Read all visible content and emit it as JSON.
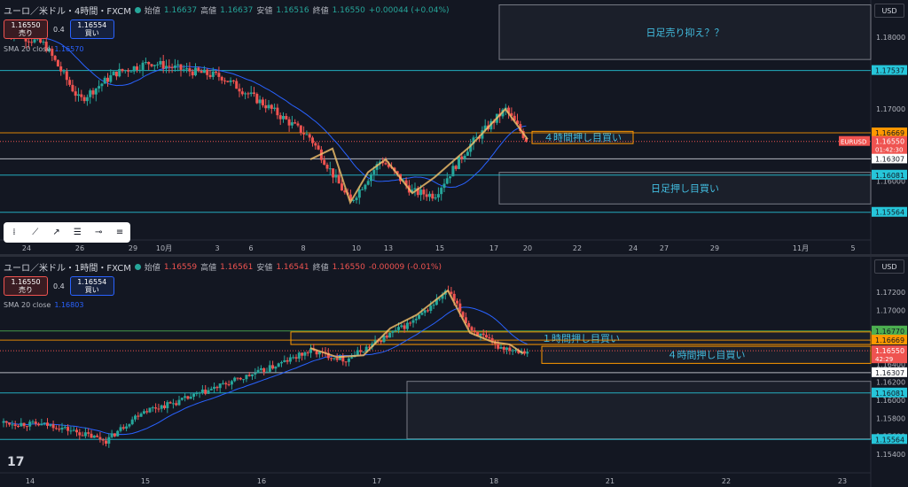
{
  "top": {
    "header": {
      "symbol": "ユーロ／米ドル・4時間・FXCM",
      "open_k": "始値",
      "open_v": "1.16637",
      "high_k": "高値",
      "high_v": "1.16637",
      "low_k": "安値",
      "low_v": "1.16516",
      "close_k": "終値",
      "close_v": "1.16550",
      "change": "+0.00044 (+0.04%)"
    },
    "sell": {
      "price": "1.16550",
      "label": "売り"
    },
    "buy": {
      "price": "1.16554",
      "label": "買い"
    },
    "spread": "0.4",
    "sma": {
      "label": "SMA 20 close",
      "value": "1.16570"
    },
    "currency": "USD",
    "axis_ticks": [
      {
        "v": 1.18,
        "t": "1.18000"
      },
      {
        "v": 1.17,
        "t": "1.17000"
      },
      {
        "v": 1.16,
        "t": "1.16000"
      }
    ],
    "price_tags": [
      {
        "v": 1.17537,
        "t": "1.17537",
        "bg": "#26c6da",
        "fg": "#131722"
      },
      {
        "v": 1.16669,
        "t": "1.16669",
        "bg": "#ff9800",
        "fg": "#131722"
      },
      {
        "v": 1.16307,
        "t": "1.16307",
        "bg": "#ffffff",
        "fg": "#131722"
      },
      {
        "v": 1.16081,
        "t": "1.16081",
        "bg": "#26c6da",
        "fg": "#131722"
      },
      {
        "v": 1.15564,
        "t": "1.15564",
        "bg": "#26c6da",
        "fg": "#131722"
      }
    ],
    "last": {
      "v": 1.1655,
      "t": "1.16550",
      "sub": "01:42:30",
      "sym": "EURUSD"
    },
    "x_labels": [
      "24",
      "26",
      "29",
      "10月",
      "3",
      "6",
      "8",
      "10",
      "13",
      "15",
      "17",
      "20",
      "22",
      "24",
      "27",
      "29",
      "11月",
      "5"
    ],
    "zones": [
      {
        "label": "日足売り抑え？？",
        "from": 1.1845,
        "to": 1.1769
      },
      {
        "label": "日足押し目買い",
        "from": 1.1612,
        "to": 1.1568
      },
      {
        "label": "４時間押し目買い",
        "from": 1.1669,
        "to": 1.1652
      }
    ]
  },
  "bottom": {
    "header": {
      "symbol": "ユーロ／米ドル・1時間・FXCM",
      "open_k": "始値",
      "open_v": "1.16559",
      "high_k": "高値",
      "high_v": "1.16561",
      "low_k": "安値",
      "low_v": "1.16541",
      "close_k": "終値",
      "close_v": "1.16550",
      "change": "-0.00009 (-0.01%)"
    },
    "sell": {
      "price": "1.16550",
      "label": "売り"
    },
    "buy": {
      "price": "1.16554",
      "label": "買い"
    },
    "spread": "0.4",
    "sma": {
      "label": "SMA 20 close",
      "value": "1.16803"
    },
    "currency": "USD",
    "axis_ticks": [
      {
        "v": 1.172,
        "t": "1.17200"
      },
      {
        "v": 1.17,
        "t": "1.17000"
      },
      {
        "v": 1.168,
        "t": "1.16800"
      },
      {
        "v": 1.164,
        "t": "1.16400"
      },
      {
        "v": 1.162,
        "t": "1.16200"
      },
      {
        "v": 1.16,
        "t": "1.16000"
      },
      {
        "v": 1.158,
        "t": "1.15800"
      },
      {
        "v": 1.156,
        "t": "1.15600"
      },
      {
        "v": 1.154,
        "t": "1.15400"
      }
    ],
    "price_tags": [
      {
        "v": 1.1677,
        "t": "1.16770",
        "bg": "#4caf50",
        "fg": "#131722"
      },
      {
        "v": 1.16669,
        "t": "1.16669",
        "bg": "#ff9800",
        "fg": "#131722"
      },
      {
        "v": 1.16307,
        "t": "1.16307",
        "bg": "#ffffff",
        "fg": "#131722"
      },
      {
        "v": 1.16081,
        "t": "1.16081",
        "bg": "#26c6da",
        "fg": "#131722"
      },
      {
        "v": 1.15564,
        "t": "1.15564",
        "bg": "#26c6da",
        "fg": "#131722"
      }
    ],
    "last": {
      "v": 1.1655,
      "t": "1.16550",
      "sub": "42:29"
    },
    "x_labels": [
      "14",
      "15",
      "16",
      "17",
      "18",
      "21",
      "22",
      "23"
    ],
    "zones": [
      {
        "label": "１時間押し目買い",
        "from": 1.1676,
        "to": 1.1662
      },
      {
        "label": "４時間押し目買い",
        "from": 1.166,
        "to": 1.1641
      },
      {
        "label": "",
        "from": 1.1621,
        "to": 1.1557
      }
    ]
  }
}
